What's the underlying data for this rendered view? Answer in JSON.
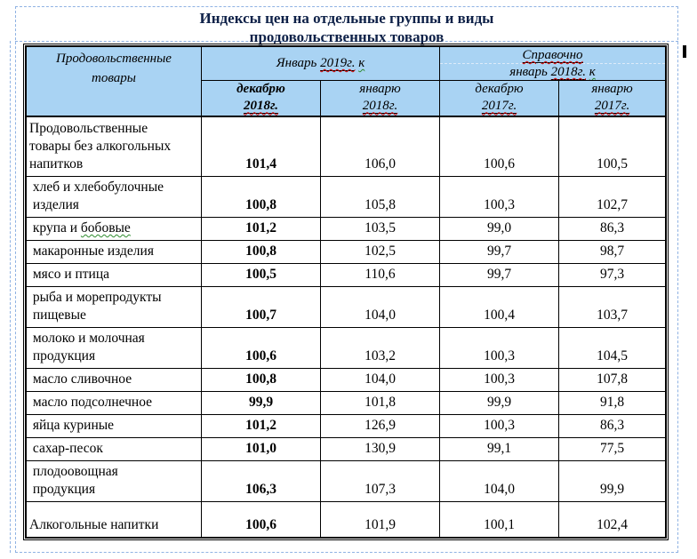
{
  "colors": {
    "header_fill": "#A9D3F3",
    "boundary_dash_blue": "#8FB2E3",
    "title_text": "#0E2148",
    "spellcheck_red": "#D00000",
    "spellcheck_green": "#2E8B2E",
    "inner_dash_light": "#DDEBFA",
    "table_border": "#000000"
  },
  "title": {
    "lines": [
      "Индексы цен на отдельные группы и виды",
      "продовольственных товаров"
    ]
  },
  "table": {
    "corner_header": {
      "lines": [
        "Продовольственные",
        "товары"
      ]
    },
    "group_jan2019": [
      {
        "t": "Январь "
      },
      {
        "t": "2019г.",
        "u": true,
        "w": "red"
      },
      {
        "t": " "
      },
      {
        "t": "к",
        "w": "green"
      }
    ],
    "spravochno": {
      "line1": [
        {
          "t": "Справочно",
          "u": true,
          "w": "red"
        }
      ],
      "line2": [
        {
          "t": "январь "
        },
        {
          "t": "2018г.",
          "u": true,
          "w": "red"
        },
        {
          "t": " "
        },
        {
          "t": "к",
          "w": "green"
        }
      ]
    },
    "sub_headers": [
      {
        "bold": true,
        "word": [
          {
            "t": "декабрю"
          }
        ],
        "year": [
          {
            "t": "2018г.",
            "u": true,
            "w": "red"
          }
        ]
      },
      {
        "bold": false,
        "word": [
          {
            "t": "январю"
          }
        ],
        "year": [
          {
            "t": "2018г.",
            "u": true,
            "w": "red"
          }
        ]
      },
      {
        "bold": false,
        "word": [
          {
            "t": "декабрю"
          }
        ],
        "year": [
          {
            "t": "2017г.",
            "u": true,
            "w": "red"
          }
        ]
      },
      {
        "bold": false,
        "word": [
          {
            "t": "январю"
          }
        ],
        "year": [
          {
            "t": "2017г.",
            "u": true,
            "w": "red"
          }
        ]
      }
    ],
    "rows": [
      {
        "label_lines": [
          [
            {
              "t": "Продовольственные"
            }
          ],
          [
            {
              "t": "товары без алкогольных"
            }
          ],
          [
            {
              "t": "напитков"
            }
          ]
        ],
        "values": [
          "101,4",
          "106,0",
          "100,6",
          "100,5"
        ]
      },
      {
        "label_lines": [
          [
            {
              "t": " хлеб и хлебобулочные"
            }
          ],
          [
            {
              "t": " изделия"
            }
          ]
        ],
        "values": [
          "100,8",
          "105,8",
          "100,3",
          "102,7"
        ]
      },
      {
        "label_lines": [
          [
            {
              "t": " крупа и "
            },
            {
              "t": "бобовые",
              "w": "green"
            }
          ]
        ],
        "values": [
          "101,2",
          "103,5",
          "99,0",
          "86,3"
        ]
      },
      {
        "label_lines": [
          [
            {
              "t": " макаронные изделия"
            }
          ]
        ],
        "values": [
          "100,8",
          "102,5",
          "99,7",
          "98,7"
        ]
      },
      {
        "label_lines": [
          [
            {
              "t": " мясо и птица"
            }
          ]
        ],
        "values": [
          "100,5",
          "110,6",
          "99,7",
          "97,3"
        ]
      },
      {
        "label_lines": [
          [
            {
              "t": " рыба и морепродукты"
            }
          ],
          [
            {
              "t": " пищевые"
            }
          ]
        ],
        "values": [
          "100,7",
          "104,0",
          "100,4",
          "103,7"
        ]
      },
      {
        "label_lines": [
          [
            {
              "t": " молоко и молочная"
            }
          ],
          [
            {
              "t": " продукция"
            }
          ]
        ],
        "values": [
          "100,6",
          "103,2",
          "100,3",
          "104,5"
        ]
      },
      {
        "label_lines": [
          [
            {
              "t": " масло сливочное"
            }
          ]
        ],
        "values": [
          "100,8",
          "104,0",
          "100,3",
          "107,8"
        ]
      },
      {
        "label_lines": [
          [
            {
              "t": " масло подсолнечное"
            }
          ]
        ],
        "values": [
          "99,9",
          "101,8",
          "99,9",
          "91,8"
        ]
      },
      {
        "label_lines": [
          [
            {
              "t": " яйца куриные"
            }
          ]
        ],
        "values": [
          "101,2",
          "126,9",
          "100,3",
          "86,3"
        ]
      },
      {
        "label_lines": [
          [
            {
              "t": " сахар-песок"
            }
          ]
        ],
        "values": [
          "101,0",
          "130,9",
          "99,1",
          "77,5"
        ]
      },
      {
        "label_lines": [
          [
            {
              "t": " плодоовощная"
            }
          ],
          [
            {
              "t": " продукция"
            }
          ]
        ],
        "values": [
          "106,3",
          "107,3",
          "104,0",
          "99,9"
        ]
      },
      {
        "label_lines": [
          [
            {
              "t": "Алкогольные напитки"
            }
          ]
        ],
        "values": [
          "100,6",
          "101,9",
          "100,1",
          "102,4"
        ]
      }
    ]
  }
}
